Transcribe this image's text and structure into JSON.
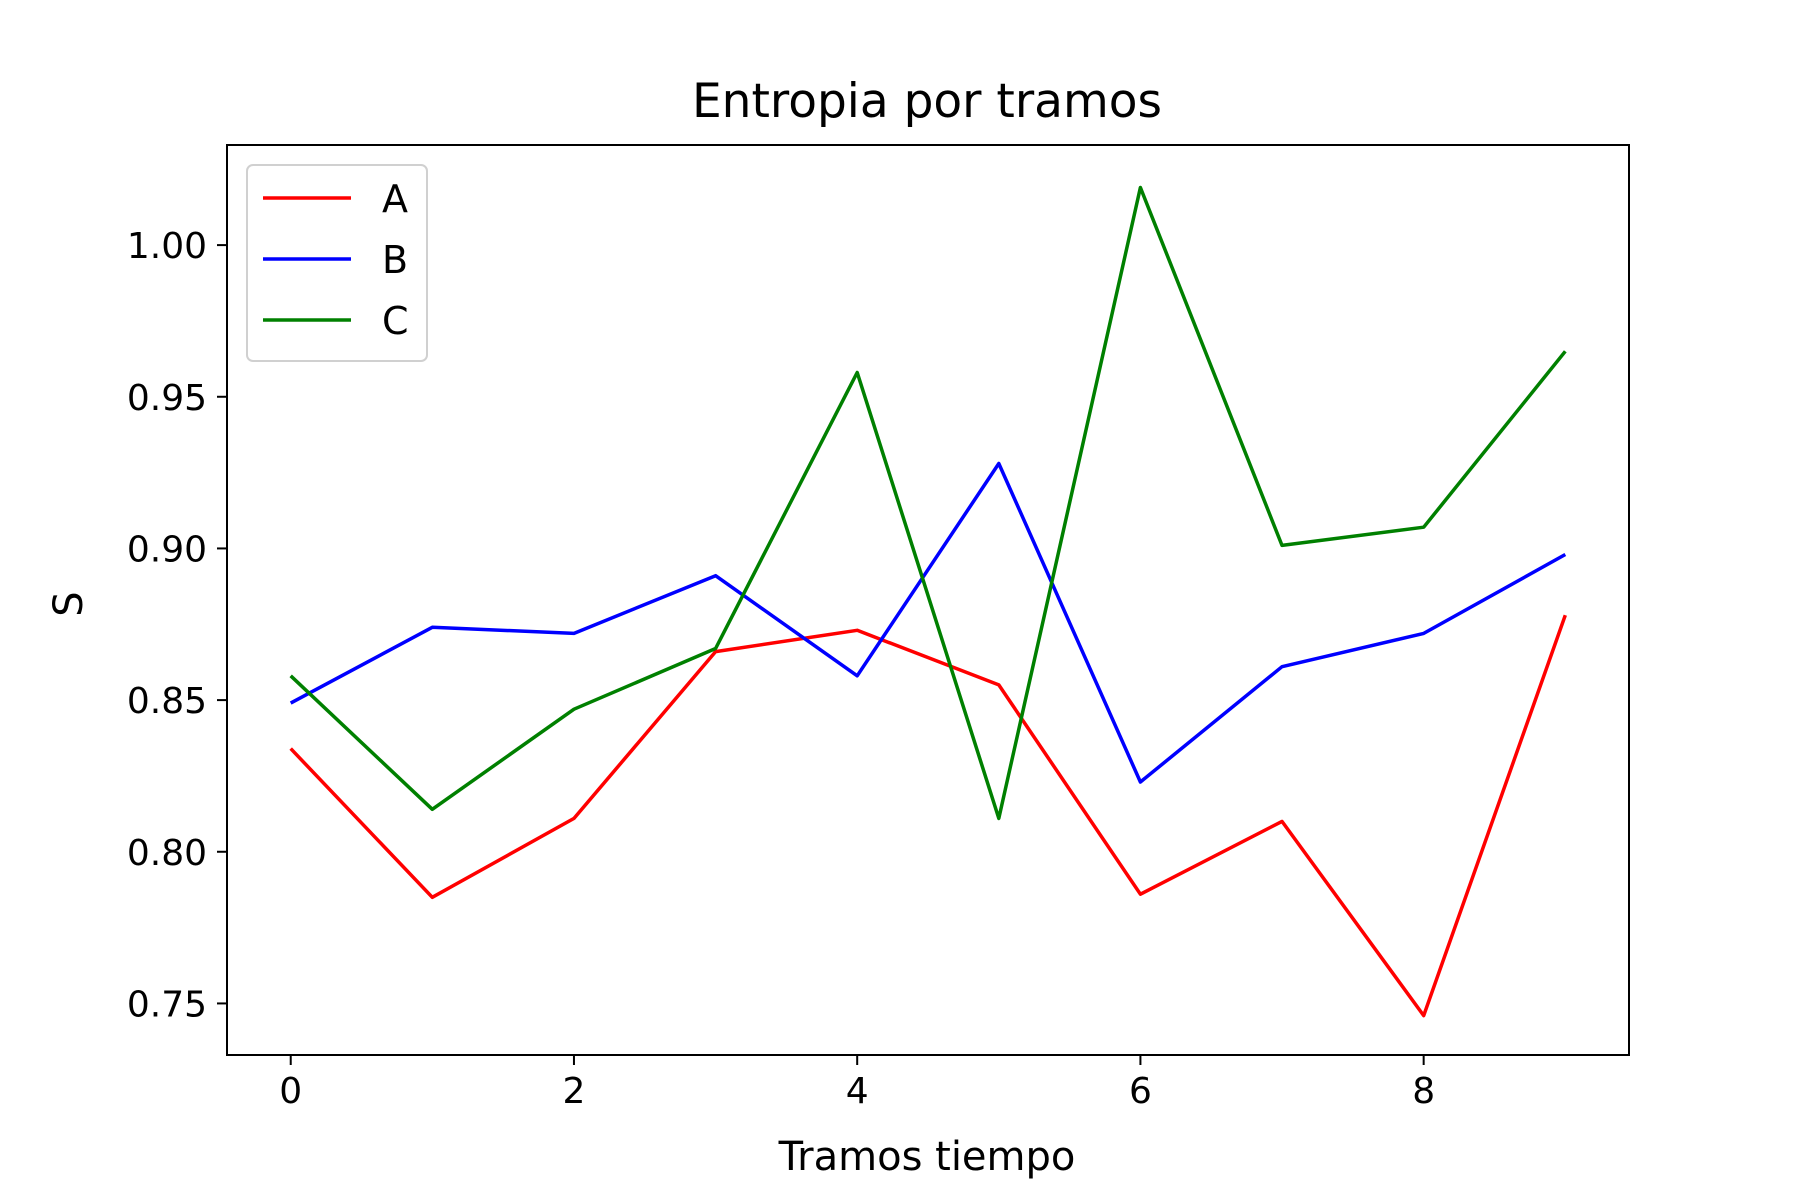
{
  "chart_data": {
    "type": "line",
    "title": "Entropia por tramos",
    "xlabel": "Tramos tiempo",
    "ylabel": "S",
    "xlim": [
      -0.45,
      9.45
    ],
    "ylim": [
      0.733,
      1.033
    ],
    "x_ticks": [
      0,
      2,
      4,
      6,
      8
    ],
    "x_tick_labels": [
      "0",
      "2",
      "4",
      "6",
      "8"
    ],
    "y_ticks": [
      0.75,
      0.8,
      0.85,
      0.9,
      0.95,
      1.0
    ],
    "y_tick_labels": [
      "0.75",
      "0.80",
      "0.85",
      "0.90",
      "0.95",
      "1.00"
    ],
    "grid": false,
    "legend_position": "upper-left",
    "x": [
      0,
      1,
      2,
      3,
      4,
      5,
      6,
      7,
      8,
      9
    ],
    "series": [
      {
        "name": "A",
        "color": "#ff0000",
        "values": [
          0.834,
          0.785,
          0.811,
          0.866,
          0.873,
          0.855,
          0.786,
          0.81,
          0.746,
          0.878
        ]
      },
      {
        "name": "B",
        "color": "#0000ff",
        "values": [
          0.849,
          0.874,
          0.872,
          0.891,
          0.858,
          0.928,
          0.823,
          0.861,
          0.872,
          0.898
        ]
      },
      {
        "name": "C",
        "color": "#008000",
        "values": [
          0.858,
          0.814,
          0.847,
          0.867,
          0.958,
          0.811,
          1.019,
          0.901,
          0.907,
          0.965
        ]
      }
    ]
  }
}
